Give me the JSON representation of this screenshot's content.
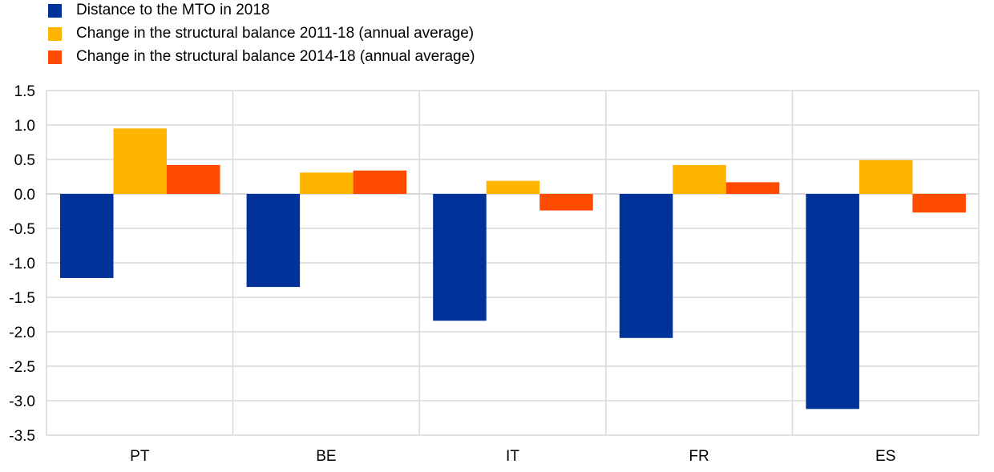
{
  "chart_data": {
    "type": "bar",
    "title": "",
    "xlabel": "",
    "ylabel": "",
    "categories": [
      "PT",
      "BE",
      "IT",
      "FR",
      "ES"
    ],
    "series": [
      {
        "name": "Distance to the MTO in 2018",
        "color": "#003299",
        "values": [
          -1.22,
          -1.35,
          -1.84,
          -2.09,
          -3.12
        ]
      },
      {
        "name": "Change in the structural balance 2011-18 (annual average)",
        "color": "#FFB400",
        "values": [
          0.95,
          0.31,
          0.19,
          0.42,
          0.49
        ]
      },
      {
        "name": "Change in the structural balance 2014-18 (annual average)",
        "color": "#FF4B00",
        "values": [
          0.42,
          0.34,
          -0.24,
          0.17,
          -0.27
        ]
      }
    ],
    "ylim": [
      -3.5,
      1.5
    ],
    "yticks": [
      "1.5",
      "1.0",
      "0.5",
      "0.0",
      "-0.5",
      "-1.0",
      "-1.5",
      "-2.0",
      "-2.5",
      "-3.0",
      "-3.5"
    ],
    "grid": true,
    "legend": "top-left"
  }
}
